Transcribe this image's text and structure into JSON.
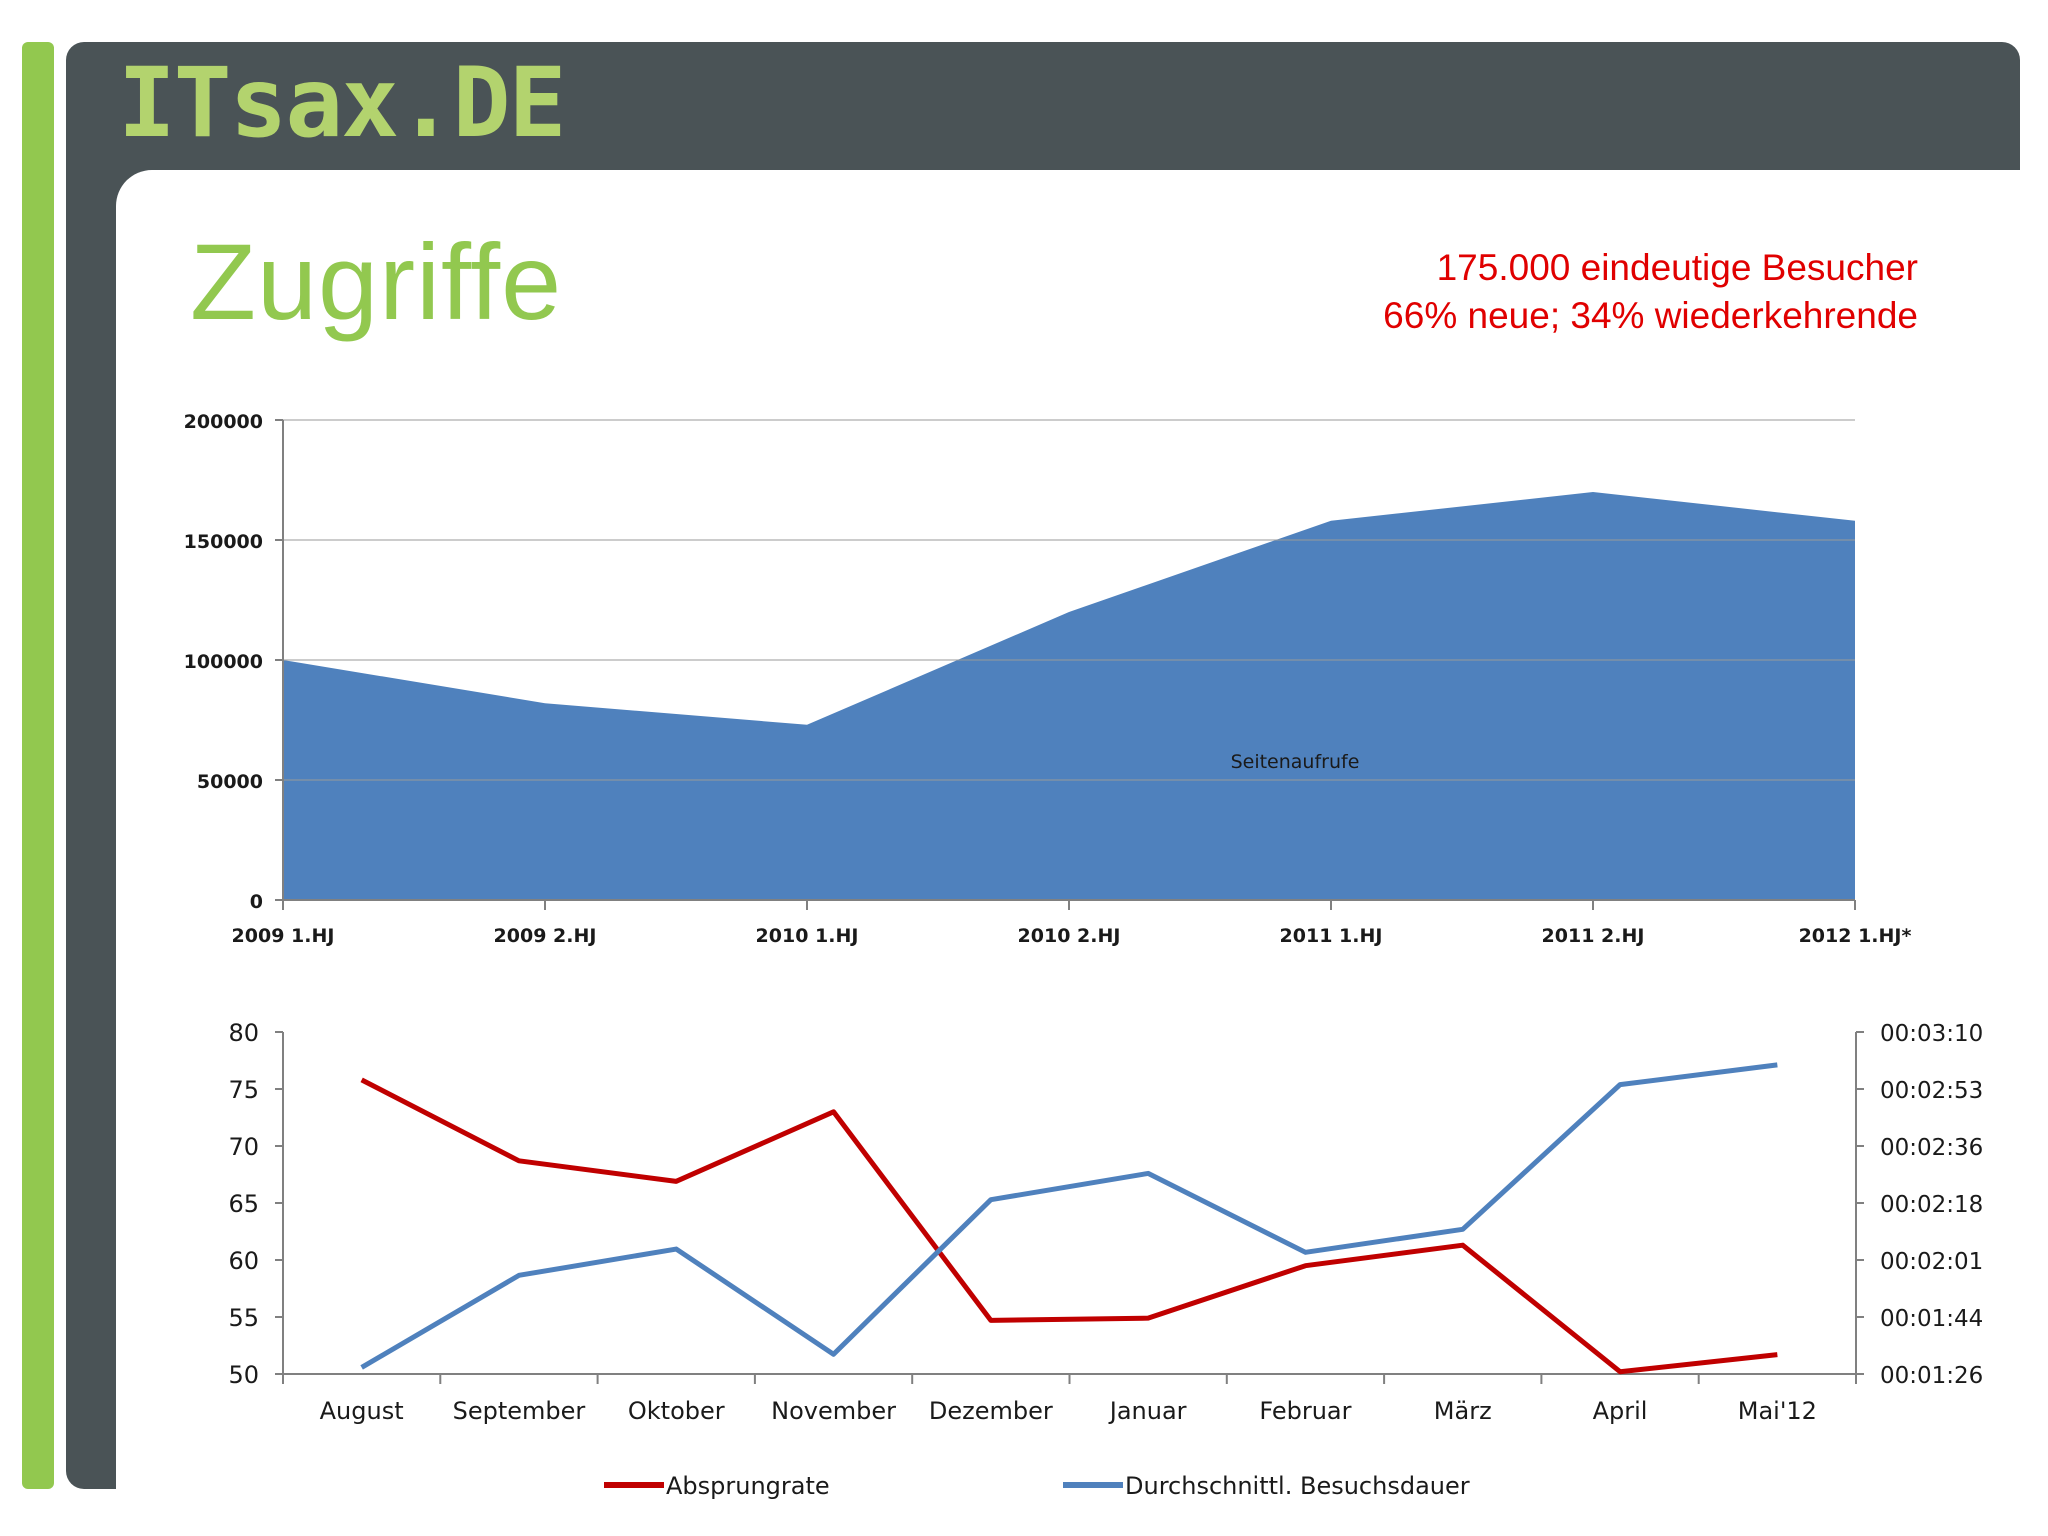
{
  "header": {
    "logo_text": "ITsax.DE"
  },
  "slide": {
    "title": "Zugriffe",
    "stats": [
      "175.000 eindeutige Besucher",
      "66% neue; 34% wiederkehrende"
    ]
  },
  "colors": {
    "brand_green": "#92c84f",
    "frame_dark": "#4a5356",
    "area_blue": "#4f81bd",
    "line_red": "#c00000",
    "line_blue": "#4f81bd",
    "stat_red": "#e00000"
  },
  "chart_data": [
    {
      "type": "area",
      "title": "",
      "categories": [
        "2009 1.HJ",
        "2009 2.HJ",
        "2010 1.HJ",
        "2010 2.HJ",
        "2011 1.HJ",
        "2011 2.HJ",
        "2012 1.HJ*"
      ],
      "series": [
        {
          "name": "Seitenaufrufe",
          "values": [
            100000,
            82000,
            73000,
            120000,
            158000,
            170000,
            158000
          ]
        }
      ],
      "ylim": [
        0,
        200000
      ],
      "yticks": [
        "0",
        "50000",
        "100000",
        "150000",
        "200000"
      ],
      "grid": true,
      "legend": "none"
    },
    {
      "type": "line",
      "categories": [
        "August",
        "September",
        "Oktober",
        "November",
        "Dezember",
        "Januar",
        "Februar",
        "März",
        "April",
        "Mai'12"
      ],
      "series": [
        {
          "name": "Absprungrate",
          "axis": "left",
          "values": [
            75.8,
            68.7,
            66.9,
            73.0,
            54.7,
            54.9,
            59.5,
            61.3,
            50.2,
            51.7
          ]
        },
        {
          "name": "Durchschnittl. Besuchsdauer",
          "axis": "right",
          "values_seconds": [
            88,
            116,
            124,
            92,
            139,
            147,
            123,
            130,
            174,
            180
          ]
        }
      ],
      "left_ylim": [
        50,
        80
      ],
      "left_yticks": [
        "50",
        "55",
        "60",
        "65",
        "70",
        "75",
        "80"
      ],
      "right_ylim_seconds": [
        86,
        190
      ],
      "right_yticks": [
        "00:01:26",
        "00:01:44",
        "00:02:01",
        "00:02:18",
        "00:02:36",
        "00:02:53",
        "00:03:10"
      ],
      "legend": "bottom"
    }
  ]
}
